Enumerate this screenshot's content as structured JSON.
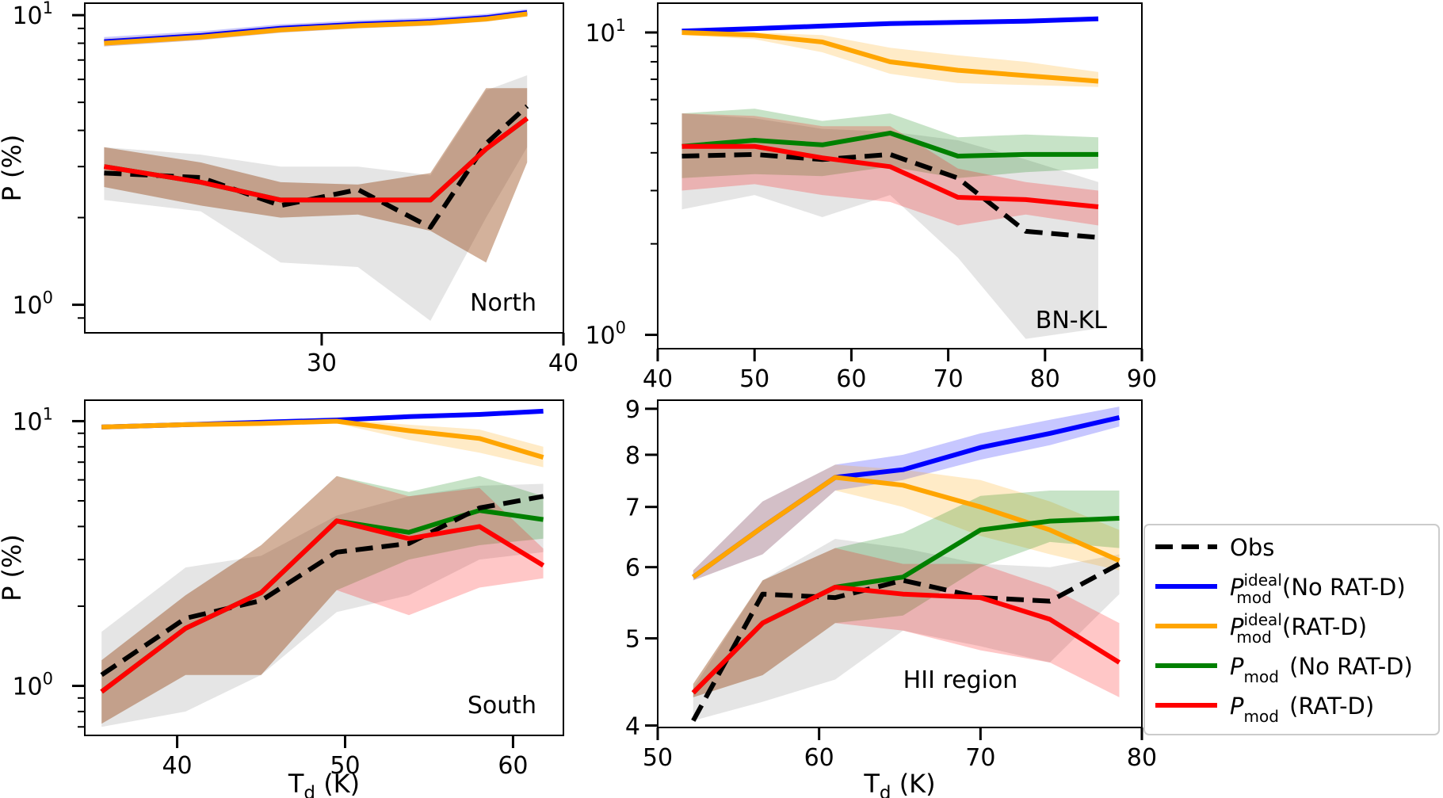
{
  "figure": {
    "ylabel": "P (%)",
    "xlabel_base": "T",
    "xlabel_sub": "d",
    "xlabel_unit": " (K)"
  },
  "legend": {
    "position": "right",
    "entries": [
      {
        "key": "obs",
        "label": "Obs",
        "color": "#000000",
        "dash": true
      },
      {
        "key": "ideal_nord",
        "main": "P",
        "sub": "mod",
        "sup": "ideal",
        "suffix": " (No RAT-D)",
        "color": "#0000ff"
      },
      {
        "key": "ideal_ratd",
        "main": "P",
        "sub": "mod",
        "sup": "ideal",
        "suffix": " (RAT-D)",
        "color": "#ffa500"
      },
      {
        "key": "mod_nord",
        "main": "P",
        "sub": "mod",
        "sup": "",
        "suffix": " (No RAT-D)",
        "color": "#008000"
      },
      {
        "key": "mod_ratd",
        "main": "P",
        "sub": "mod",
        "sup": "",
        "suffix": " (RAT-D)",
        "color": "#ff0000"
      }
    ]
  },
  "chart_data": [
    {
      "type": "line",
      "title": "North",
      "yscale": "log",
      "xlim": [
        20.2,
        40
      ],
      "ylim": [
        0.8,
        11
      ],
      "xticks": [
        30,
        40
      ],
      "xtick_labels": [
        "30",
        "40"
      ],
      "yticks": [
        1,
        10
      ],
      "ytick_labels": [
        "10^0",
        "10^1"
      ],
      "show_xlabel": false,
      "show_ylabel": true,
      "x": [
        21,
        25,
        28.3,
        31.5,
        34.5,
        36.8,
        38.5
      ],
      "series": [
        {
          "key": "obs",
          "values": [
            2.85,
            2.75,
            2.2,
            2.5,
            1.85,
            3.6,
            4.85
          ],
          "lo": [
            2.3,
            2.1,
            1.4,
            1.35,
            0.88,
            2.0,
            3.5
          ],
          "hi": [
            3.5,
            3.3,
            3.0,
            3.0,
            2.8,
            5.5,
            6.2
          ]
        },
        {
          "key": "ideal_nord",
          "values": [
            8.1,
            8.5,
            9.0,
            9.3,
            9.5,
            9.8,
            10.2
          ],
          "lo": [
            7.8,
            8.2,
            8.7,
            9.0,
            9.2,
            9.5,
            9.9
          ],
          "hi": [
            8.4,
            8.8,
            9.3,
            9.6,
            9.8,
            10.1,
            10.5
          ]
        },
        {
          "key": "ideal_ratd",
          "values": [
            8.0,
            8.4,
            8.9,
            9.2,
            9.4,
            9.7,
            10.1
          ],
          "lo": [
            7.8,
            8.2,
            8.7,
            9.0,
            9.2,
            9.5,
            9.9
          ],
          "hi": [
            8.3,
            8.7,
            9.2,
            9.5,
            9.7,
            10.0,
            10.4
          ]
        },
        {
          "key": "mod_nord",
          "values": [
            3.0,
            2.65,
            2.3,
            2.3,
            2.3,
            3.45,
            4.4
          ],
          "lo": [
            2.55,
            2.2,
            2.0,
            2.05,
            1.8,
            1.4,
            3.1
          ],
          "hi": [
            3.5,
            3.1,
            2.65,
            2.6,
            2.85,
            5.6,
            5.6
          ]
        },
        {
          "key": "mod_ratd",
          "values": [
            3.0,
            2.65,
            2.3,
            2.3,
            2.3,
            3.45,
            4.4
          ],
          "lo": [
            2.55,
            2.2,
            2.0,
            2.05,
            1.8,
            1.4,
            3.1
          ],
          "hi": [
            3.5,
            3.1,
            2.65,
            2.6,
            2.85,
            5.6,
            5.6
          ]
        }
      ]
    },
    {
      "type": "line",
      "title": "BN-KL",
      "yscale": "log",
      "xlim": [
        40,
        90
      ],
      "ylim": [
        0.9,
        12.5
      ],
      "xticks": [
        40,
        50,
        60,
        70,
        80,
        90
      ],
      "xtick_labels": [
        "40",
        "50",
        "60",
        "70",
        "80",
        "90"
      ],
      "yticks": [
        1,
        10
      ],
      "ytick_labels": [
        "10^0",
        "10^1"
      ],
      "show_xlabel": false,
      "show_ylabel": false,
      "x": [
        42.5,
        50,
        57,
        64,
        71,
        78,
        85.5
      ],
      "series": [
        {
          "key": "obs",
          "values": [
            3.9,
            3.95,
            3.8,
            3.95,
            3.3,
            2.2,
            2.1
          ],
          "lo": [
            2.6,
            2.9,
            2.45,
            2.9,
            1.8,
            0.97,
            1.05
          ],
          "hi": [
            5.4,
            5.2,
            4.8,
            4.7,
            4.4,
            3.8,
            3.2
          ]
        },
        {
          "key": "ideal_nord",
          "values": [
            10.1,
            10.3,
            10.5,
            10.7,
            10.8,
            10.9,
            11.1
          ],
          "lo": [
            10.0,
            10.2,
            10.4,
            10.6,
            10.7,
            10.8,
            11.0
          ],
          "hi": [
            10.3,
            10.5,
            10.7,
            10.9,
            11.0,
            11.1,
            11.3
          ]
        },
        {
          "key": "ideal_ratd",
          "values": [
            10.0,
            9.8,
            9.3,
            8.0,
            7.5,
            7.2,
            6.9
          ],
          "lo": [
            9.8,
            9.5,
            8.6,
            7.3,
            6.8,
            6.7,
            6.6
          ],
          "hi": [
            10.2,
            10.0,
            9.8,
            8.9,
            8.4,
            8.0,
            7.4
          ]
        },
        {
          "key": "mod_nord",
          "values": [
            4.2,
            4.4,
            4.25,
            4.65,
            3.9,
            3.95,
            3.95
          ],
          "lo": [
            3.3,
            3.4,
            3.35,
            3.6,
            3.3,
            3.45,
            3.55
          ],
          "hi": [
            5.4,
            5.6,
            5.1,
            5.4,
            4.5,
            4.6,
            4.5
          ]
        },
        {
          "key": "mod_ratd",
          "values": [
            4.2,
            4.2,
            3.85,
            3.6,
            2.85,
            2.8,
            2.65
          ],
          "lo": [
            3.0,
            3.15,
            2.9,
            2.75,
            2.3,
            2.5,
            2.3
          ],
          "hi": [
            5.4,
            5.3,
            4.9,
            4.9,
            3.55,
            3.2,
            3.0
          ]
        }
      ]
    },
    {
      "type": "line",
      "title": "South",
      "yscale": "log",
      "xlim": [
        34.5,
        63
      ],
      "ylim": [
        0.65,
        12
      ],
      "xticks": [
        40,
        50,
        60
      ],
      "xtick_labels": [
        "40",
        "50",
        "60"
      ],
      "yticks": [
        1,
        10
      ],
      "ytick_labels": [
        "10^0",
        "10^1"
      ],
      "show_xlabel": true,
      "show_ylabel": true,
      "x": [
        35.5,
        40.5,
        45,
        49.5,
        53.8,
        58,
        61.8
      ],
      "series": [
        {
          "key": "obs",
          "values": [
            1.1,
            1.8,
            2.1,
            3.2,
            3.45,
            4.7,
            5.2
          ],
          "lo": [
            0.7,
            0.8,
            1.1,
            1.9,
            2.2,
            3.0,
            3.2
          ],
          "hi": [
            1.6,
            2.8,
            3.1,
            4.4,
            5.2,
            5.7,
            5.8
          ]
        },
        {
          "key": "ideal_nord",
          "values": [
            9.5,
            9.7,
            9.9,
            10.1,
            10.4,
            10.6,
            10.9
          ],
          "lo": [
            9.3,
            9.5,
            9.7,
            9.9,
            10.2,
            10.4,
            10.7
          ],
          "hi": [
            9.7,
            9.9,
            10.1,
            10.3,
            10.6,
            10.8,
            11.1
          ]
        },
        {
          "key": "ideal_ratd",
          "values": [
            9.5,
            9.7,
            9.8,
            10.0,
            9.2,
            8.6,
            7.3
          ],
          "lo": [
            9.3,
            9.5,
            9.6,
            9.8,
            8.5,
            7.6,
            6.7
          ],
          "hi": [
            9.7,
            9.9,
            10.0,
            10.2,
            9.7,
            9.3,
            8.0
          ]
        },
        {
          "key": "mod_nord",
          "values": [
            0.95,
            1.65,
            2.25,
            4.2,
            3.8,
            4.6,
            4.25
          ],
          "lo": [
            0.72,
            1.1,
            1.1,
            2.3,
            3.0,
            3.4,
            3.6
          ],
          "hi": [
            1.25,
            2.2,
            3.4,
            6.2,
            5.4,
            6.2,
            5.2
          ]
        },
        {
          "key": "mod_ratd",
          "values": [
            0.95,
            1.65,
            2.25,
            4.2,
            3.6,
            4.0,
            2.85
          ],
          "lo": [
            0.72,
            1.1,
            1.1,
            2.3,
            1.85,
            2.35,
            2.55
          ],
          "hi": [
            1.25,
            2.2,
            3.4,
            6.2,
            5.2,
            5.6,
            3.3
          ]
        }
      ]
    },
    {
      "type": "line",
      "title": "HII region",
      "yscale": "log",
      "xlim": [
        50,
        80
      ],
      "ylim": [
        3.98,
        9.2
      ],
      "xticks": [
        50,
        60,
        70,
        80
      ],
      "xtick_labels": [
        "50",
        "60",
        "70",
        "80"
      ],
      "yticks": [
        4,
        5,
        6,
        7,
        8,
        9
      ],
      "ytick_labels": [
        "4",
        "5",
        "6",
        "7",
        "8",
        "9"
      ],
      "show_xlabel": true,
      "show_ylabel": false,
      "x": [
        52.2,
        56.5,
        61,
        65.2,
        70,
        74.3,
        78.6
      ],
      "series": [
        {
          "key": "obs",
          "values": [
            4.05,
            5.6,
            5.55,
            5.8,
            5.55,
            5.5,
            6.05
          ],
          "lo": [
            4.05,
            4.25,
            4.5,
            5.1,
            4.9,
            4.7,
            5.6
          ],
          "hi": [
            4.4,
            5.8,
            6.45,
            6.3,
            6.05,
            6.0,
            6.2
          ]
        },
        {
          "key": "ideal_nord",
          "values": [
            5.85,
            6.65,
            7.55,
            7.7,
            8.15,
            8.45,
            8.8
          ],
          "lo": [
            5.8,
            6.2,
            7.3,
            7.5,
            7.9,
            8.2,
            8.6
          ],
          "hi": [
            5.95,
            7.1,
            7.8,
            8.0,
            8.45,
            8.75,
            9.05
          ]
        },
        {
          "key": "ideal_ratd",
          "values": [
            5.85,
            6.65,
            7.55,
            7.4,
            7.0,
            6.6,
            6.1
          ],
          "lo": [
            5.8,
            6.2,
            7.3,
            7.0,
            6.5,
            6.2,
            5.95
          ],
          "hi": [
            5.95,
            7.1,
            7.8,
            7.7,
            7.5,
            7.1,
            6.6
          ]
        },
        {
          "key": "mod_nord",
          "values": [
            4.35,
            5.2,
            5.7,
            5.85,
            6.6,
            6.75,
            6.8
          ],
          "lo": [
            4.3,
            4.55,
            5.2,
            5.3,
            6.0,
            6.4,
            6.3
          ],
          "hi": [
            4.45,
            5.8,
            6.3,
            6.55,
            7.2,
            7.3,
            7.3
          ]
        },
        {
          "key": "mod_ratd",
          "values": [
            4.35,
            5.2,
            5.7,
            5.6,
            5.55,
            5.25,
            4.7
          ],
          "lo": [
            4.3,
            4.55,
            5.2,
            5.1,
            4.85,
            4.7,
            4.3
          ],
          "hi": [
            4.45,
            5.8,
            6.3,
            6.05,
            6.05,
            5.7,
            5.2
          ]
        }
      ]
    }
  ]
}
